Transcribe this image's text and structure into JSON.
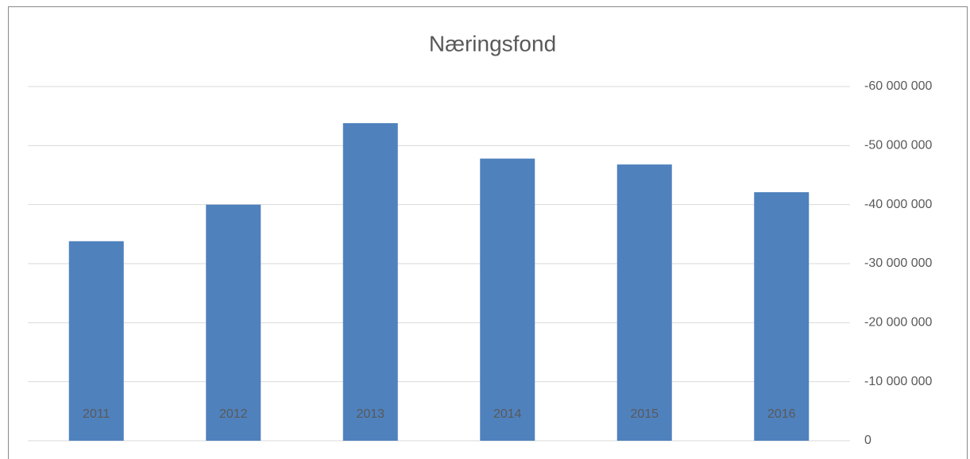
{
  "chart_data": {
    "type": "bar",
    "title": "Næringsfond",
    "categories": [
      "2011",
      "2012",
      "2013",
      "2014",
      "2015",
      "2016"
    ],
    "values": [
      -33800000,
      -40000000,
      -53800000,
      -47800000,
      -46800000,
      -42100000
    ],
    "color": "#4f81bd",
    "ylim": [
      0,
      -60000000
    ],
    "yticks": [
      0,
      {
        "value": -10000000,
        "label": "-10 000 000"
      },
      {
        "value": -20000000,
        "label": "-20 000 000"
      },
      {
        "value": -30000000,
        "label": "-30 000 000"
      },
      {
        "value": -40000000,
        "label": "-40 000 000"
      },
      {
        "value": -50000000,
        "label": "-50 000 000"
      },
      {
        "value": -60000000,
        "label": "-60 000 000"
      }
    ],
    "grid": true
  }
}
